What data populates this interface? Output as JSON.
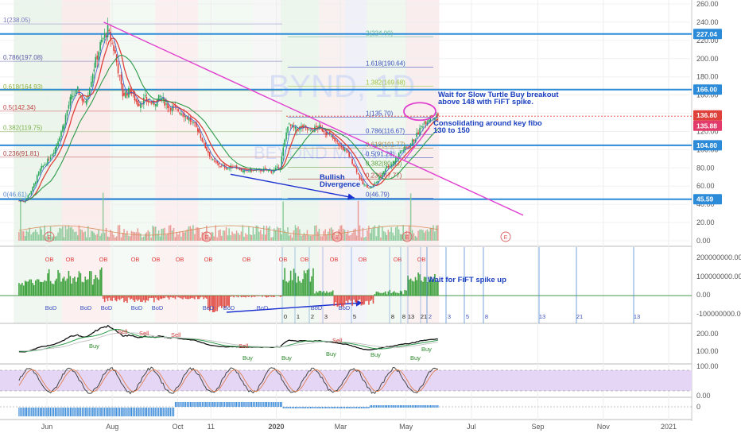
{
  "chart_data": {
    "type": "candlestick",
    "symbol_watermark": "BYND, 1D",
    "company_watermark": "BEYOND MEAT INC",
    "x_ticks": [
      "Jun",
      "Aug",
      "Oct",
      "11",
      "2020",
      "Mar",
      "May",
      "Jul",
      "Sep",
      "Nov",
      "2021"
    ],
    "price_axis": {
      "ticks": [
        "260.00",
        "240.00",
        "220.00",
        "200.00",
        "180.00",
        "160.00",
        "140.00",
        "120.00",
        "100.00",
        "80.00",
        "60.00",
        "40.00",
        "20.00",
        "0.00"
      ],
      "range": [
        0,
        260
      ]
    },
    "horizontal_levels": [
      {
        "price": 227.04,
        "label": "227.04"
      },
      {
        "price": 166.0,
        "label": "166.00"
      },
      {
        "price": 104.8,
        "label": "104.80"
      },
      {
        "price": 45.59,
        "label": "45.59"
      }
    ],
    "price_tags": [
      {
        "price": 136.8,
        "label": "136.80"
      },
      {
        "price": 135.88,
        "label": "135.88"
      }
    ],
    "fib_left": [
      {
        "label": "1(238.05)",
        "price": 238.05
      },
      {
        "label": "0.786(197.08)",
        "price": 197.08
      },
      {
        "label": "0.618(164.93)",
        "price": 164.93
      },
      {
        "label": "0.5(142.34)",
        "price": 142.34
      },
      {
        "label": "0.382(119.75)",
        "price": 119.75
      },
      {
        "label": "0.236(91.81)",
        "price": 91.81
      },
      {
        "label": "0(46.61)",
        "price": 46.61
      }
    ],
    "fib_right": [
      {
        "label": "2(224.00)",
        "price": 224.0
      },
      {
        "label": "1.618(190.64)",
        "price": 190.64
      },
      {
        "label": "1.382(169.68)",
        "price": 169.68
      },
      {
        "label": "1(135.70)",
        "price": 135.7
      },
      {
        "label": "0.786(116.67)",
        "price": 116.67
      },
      {
        "label": "0.618(101.77)",
        "price": 101.77
      },
      {
        "label": "0.5(91.28)",
        "price": 91.28
      },
      {
        "label": "0.382(80.83)",
        "price": 80.83
      },
      {
        "label": "0.236(67.77)",
        "price": 67.77
      },
      {
        "label": "0(46.79)",
        "price": 46.79
      }
    ],
    "volume_axis": [
      "40.00",
      "20.00",
      "0.00"
    ],
    "osc_axis": [
      "200000000.00",
      "100000000.00",
      "0.00",
      "-100000000.00"
    ],
    "ind2_axis": [
      "200.00",
      "100.00"
    ],
    "stoch_axis": [
      "100.00",
      "0.00"
    ],
    "bottom_axis": [
      "0"
    ],
    "close_series": [
      {
        "d": "2019-05-06",
        "v": 44
      },
      {
        "d": "2019-05-13",
        "v": 58
      },
      {
        "d": "2019-05-20",
        "v": 78
      },
      {
        "d": "2019-05-27",
        "v": 88
      },
      {
        "d": "2019-06-03",
        "v": 102
      },
      {
        "d": "2019-06-10",
        "v": 125
      },
      {
        "d": "2019-06-17",
        "v": 155
      },
      {
        "d": "2019-06-24",
        "v": 165
      },
      {
        "d": "2019-07-01",
        "v": 150
      },
      {
        "d": "2019-07-08",
        "v": 185
      },
      {
        "d": "2019-07-15",
        "v": 215
      },
      {
        "d": "2019-07-22",
        "v": 232
      },
      {
        "d": "2019-07-29",
        "v": 205
      },
      {
        "d": "2019-08-05",
        "v": 160
      },
      {
        "d": "2019-08-12",
        "v": 165
      },
      {
        "d": "2019-08-19",
        "v": 150
      },
      {
        "d": "2019-08-26",
        "v": 156
      },
      {
        "d": "2019-09-02",
        "v": 150
      },
      {
        "d": "2019-09-09",
        "v": 158
      },
      {
        "d": "2019-09-16",
        "v": 148
      },
      {
        "d": "2019-09-23",
        "v": 145
      },
      {
        "d": "2019-09-30",
        "v": 140
      },
      {
        "d": "2019-10-07",
        "v": 132
      },
      {
        "d": "2019-10-14",
        "v": 122
      },
      {
        "d": "2019-10-21",
        "v": 103
      },
      {
        "d": "2019-10-28",
        "v": 88
      },
      {
        "d": "2019-11-04",
        "v": 82
      },
      {
        "d": "2019-11-11",
        "v": 80
      },
      {
        "d": "2019-11-18",
        "v": 82
      },
      {
        "d": "2019-11-25",
        "v": 76
      },
      {
        "d": "2019-12-02",
        "v": 78
      },
      {
        "d": "2019-12-09",
        "v": 77
      },
      {
        "d": "2019-12-16",
        "v": 78
      },
      {
        "d": "2019-12-23",
        "v": 76
      },
      {
        "d": "2019-12-30",
        "v": 82
      },
      {
        "d": "2020-01-06",
        "v": 128
      },
      {
        "d": "2020-01-13",
        "v": 122
      },
      {
        "d": "2020-01-20",
        "v": 125
      },
      {
        "d": "2020-01-27",
        "v": 120
      },
      {
        "d": "2020-02-03",
        "v": 125
      },
      {
        "d": "2020-02-10",
        "v": 120
      },
      {
        "d": "2020-02-17",
        "v": 112
      },
      {
        "d": "2020-02-24",
        "v": 104
      },
      {
        "d": "2020-03-02",
        "v": 96
      },
      {
        "d": "2020-03-09",
        "v": 80
      },
      {
        "d": "2020-03-16",
        "v": 62
      },
      {
        "d": "2020-03-23",
        "v": 58
      },
      {
        "d": "2020-03-30",
        "v": 66
      },
      {
        "d": "2020-04-06",
        "v": 80
      },
      {
        "d": "2020-04-13",
        "v": 85
      },
      {
        "d": "2020-04-20",
        "v": 98
      },
      {
        "d": "2020-04-27",
        "v": 103
      },
      {
        "d": "2020-05-04",
        "v": 113
      },
      {
        "d": "2020-05-11",
        "v": 128
      },
      {
        "d": "2020-05-18",
        "v": 136
      },
      {
        "d": "2020-05-25",
        "v": 136.8
      }
    ],
    "annotations": [
      {
        "id": "note-breakout",
        "text": [
          "Wait for Slow Turtle Buy breakout",
          "above 148 with FiFT spike."
        ]
      },
      {
        "id": "note-consolidating",
        "text": [
          "Consolidating around key fibo",
          "130 to 150"
        ]
      },
      {
        "id": "note-divergence",
        "text": [
          "Bullish",
          "Divergence"
        ]
      },
      {
        "id": "note-fift",
        "text": [
          "Wait for FiFT spike up"
        ]
      }
    ],
    "count_labels_osc": [
      "0",
      "1",
      "2",
      "3",
      "5",
      "8",
      "13",
      "21",
      "8"
    ],
    "count_labels_future": [
      "2",
      "3",
      "5",
      "8",
      "13",
      "21",
      "13"
    ],
    "signal_labels": [
      "OB",
      "BoD",
      "Buy",
      "Sell"
    ],
    "earnings_marker": "E",
    "legend": "none",
    "grid": true
  }
}
